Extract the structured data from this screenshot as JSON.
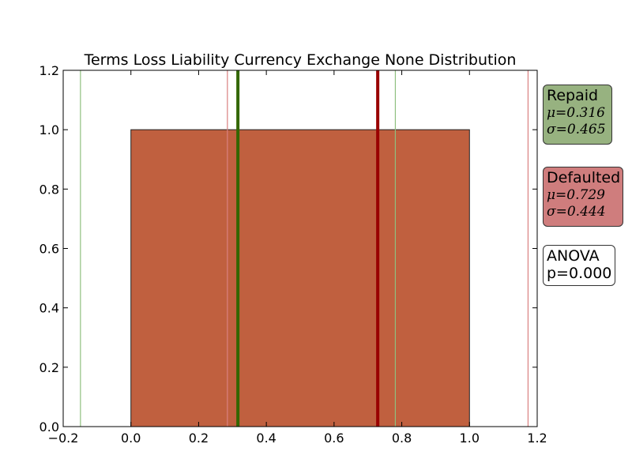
{
  "chart_data": {
    "type": "bar",
    "title": "Terms Loss Liability Currency Exchange None Distribution",
    "xlabel": "",
    "ylabel": "",
    "xlim": [
      -0.2,
      1.2
    ],
    "ylim": [
      0.0,
      1.2
    ],
    "xticks": [
      "−0.2",
      "0.0",
      "0.2",
      "0.4",
      "0.6",
      "0.8",
      "1.0",
      "1.2"
    ],
    "xtick_values": [
      -0.2,
      0.0,
      0.2,
      0.4,
      0.6,
      0.8,
      1.0,
      1.2
    ],
    "yticks": [
      "0.0",
      "0.2",
      "0.4",
      "0.6",
      "0.8",
      "1.0",
      "1.2"
    ],
    "ytick_values": [
      0.0,
      0.2,
      0.4,
      0.6,
      0.8,
      1.0,
      1.2
    ],
    "grid": false,
    "bars": [
      {
        "x0": 0.0,
        "x1": 1.0,
        "value": 1.0,
        "color": "#c0603f"
      }
    ],
    "groups": [
      {
        "name": "Repaid",
        "mean": 0.316,
        "std": 0.465,
        "mean_label": "μ=0.316",
        "std_label": "σ=0.465",
        "color": "#336600",
        "band_color": "#8fbf7f",
        "box_color": "#97b280"
      },
      {
        "name": "Defaulted",
        "mean": 0.729,
        "std": 0.444,
        "mean_label": "μ=0.729",
        "std_label": "σ=0.444",
        "color": "#990000",
        "band_color": "#d98080",
        "box_color": "#cf7d7d"
      }
    ],
    "anova": {
      "line1": "ANOVA",
      "line2": "p=0.000"
    },
    "legend_placement": "right"
  }
}
